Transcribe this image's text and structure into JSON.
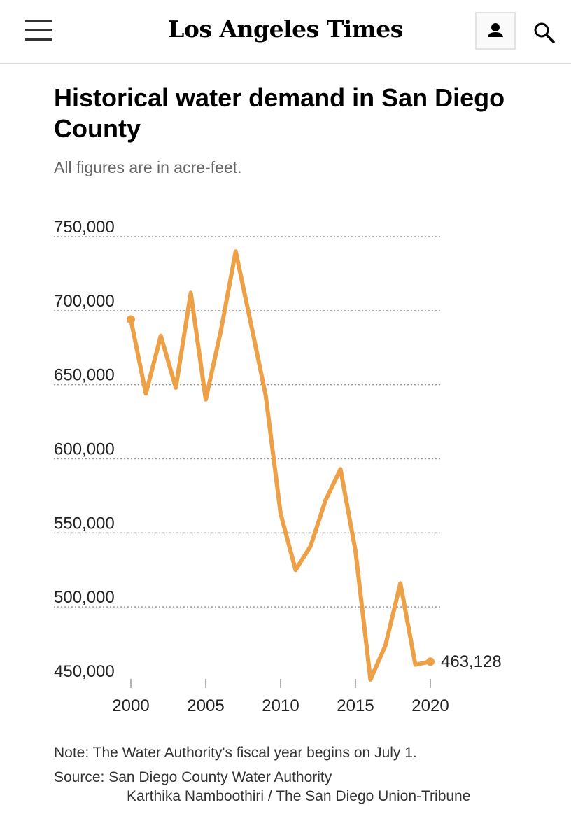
{
  "header": {
    "logo_text": "Los Angeles Times",
    "menu_icon": "hamburger-menu-icon",
    "account_icon": "user-icon",
    "search_icon": "search-icon"
  },
  "chart_data": {
    "type": "line",
    "title": "Historical water demand in San Diego County",
    "subtitle": "All figures are in acre-feet.",
    "x": [
      2000,
      2001,
      2002,
      2003,
      2004,
      2005,
      2006,
      2007,
      2008,
      2009,
      2010,
      2011,
      2012,
      2013,
      2014,
      2015,
      2016,
      2017,
      2018,
      2019,
      2020
    ],
    "series": [
      {
        "name": "",
        "color": "#eda045",
        "values": [
          694000,
          644000,
          683000,
          648000,
          712000,
          640000,
          686000,
          740000,
          692000,
          643000,
          563000,
          525000,
          541000,
          572000,
          593000,
          538000,
          451000,
          474000,
          516000,
          461000,
          463128
        ]
      }
    ],
    "y_ticks": [
      450000,
      500000,
      550000,
      600000,
      650000,
      700000,
      750000
    ],
    "y_tick_labels": [
      "450,000",
      "500,000",
      "550,000",
      "600,000",
      "650,000",
      "700,000",
      "750,000"
    ],
    "x_ticks": [
      2000,
      2005,
      2010,
      2015,
      2020
    ],
    "x_tick_labels": [
      "2000",
      "2005",
      "2010",
      "2015",
      "2020"
    ],
    "xlim": [
      2000,
      2020
    ],
    "ylim": [
      450000,
      750000
    ],
    "grid": "horizontal-dotted",
    "end_label": "463,128",
    "xlabel": "",
    "ylabel": ""
  },
  "footer": {
    "note": "Note: The Water Authority's fiscal year begins on July 1.",
    "source": "Source: San Diego County Water Authority",
    "credit": "Karthika Namboothiri / The San Diego Union-Tribune"
  }
}
